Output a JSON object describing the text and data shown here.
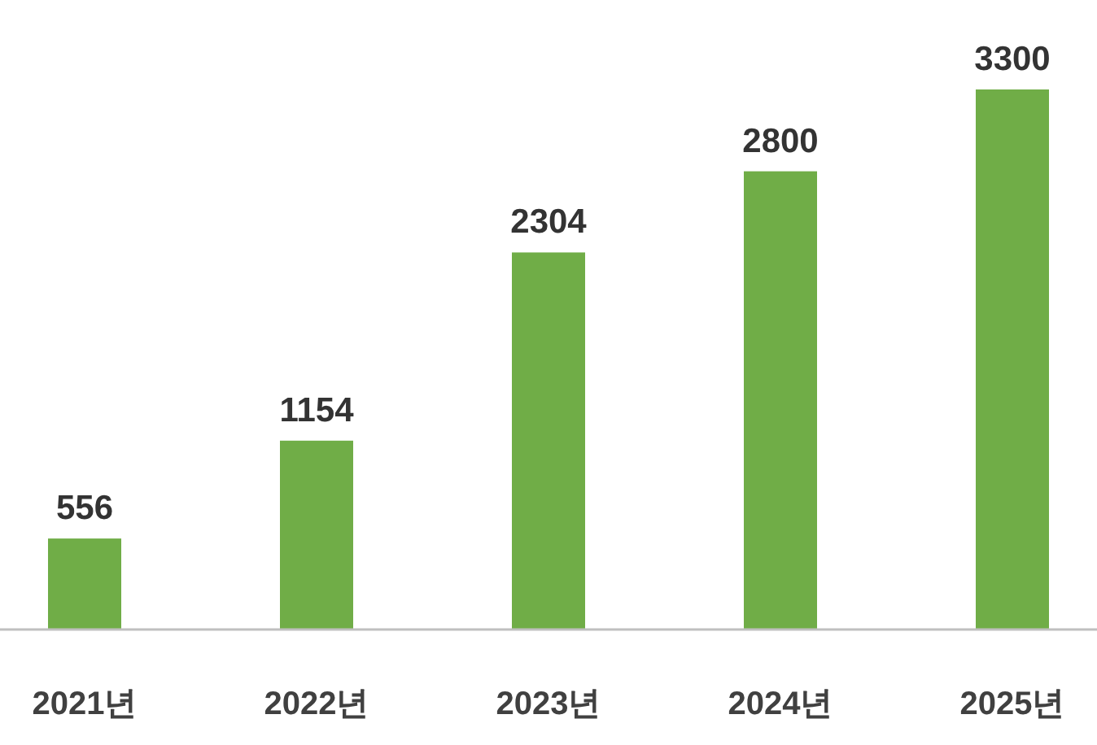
{
  "chart_data": {
    "type": "bar",
    "categories": [
      "2021년",
      "2022년",
      "2023년",
      "2024년",
      "2025년"
    ],
    "values": [
      556,
      1154,
      2304,
      2800,
      3300
    ],
    "color": "#70ad47",
    "data_labels": true
  }
}
